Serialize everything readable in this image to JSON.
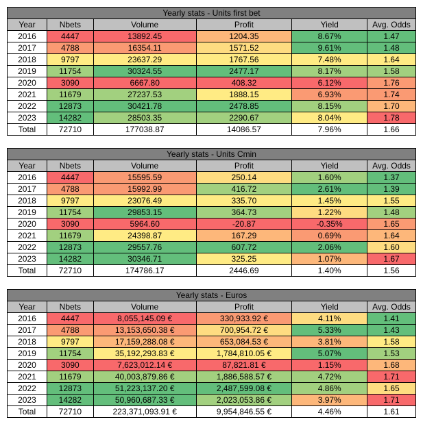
{
  "colors": {
    "green_d": "#63be7b",
    "green_m": "#a2d07f",
    "yellow": "#ffeb84",
    "orange_l": "#fedc81",
    "orange": "#fdb77a",
    "orange_d": "#fa9a73",
    "red": "#f8696b"
  },
  "columns": [
    "Year",
    "Nbets",
    "Volume",
    "Profit",
    "Yield",
    "Avg. Odds"
  ],
  "tables": [
    {
      "title": "Yearly stats - Units first bet",
      "rows": [
        {
          "year": "2016",
          "nbets": "4447",
          "nbets_c": "red",
          "vol": "13892.45",
          "vol_c": "red",
          "profit": "1204.35",
          "profit_c": "orange",
          "yield": "8.67%",
          "yield_c": "green_d",
          "odds": "1.47",
          "odds_c": "green_d"
        },
        {
          "year": "2017",
          "nbets": "4788",
          "nbets_c": "orange_d",
          "vol": "16354.11",
          "vol_c": "orange_d",
          "profit": "1571.52",
          "profit_c": "orange_l",
          "yield": "9.61%",
          "yield_c": "green_d",
          "odds": "1.48",
          "odds_c": "green_d"
        },
        {
          "year": "2018",
          "nbets": "9797",
          "nbets_c": "yellow",
          "vol": "23637.29",
          "vol_c": "yellow",
          "profit": "1767.56",
          "profit_c": "yellow",
          "yield": "7.48%",
          "yield_c": "yellow",
          "odds": "1.64",
          "odds_c": "yellow"
        },
        {
          "year": "2019",
          "nbets": "11754",
          "nbets_c": "green_m",
          "vol": "30324.55",
          "vol_c": "green_d",
          "profit": "2477.17",
          "profit_c": "green_d",
          "yield": "8.17%",
          "yield_c": "green_m",
          "odds": "1.58",
          "odds_c": "green_m"
        },
        {
          "year": "2020",
          "nbets": "3090",
          "nbets_c": "red",
          "vol": "6667.80",
          "vol_c": "red",
          "profit": "408.32",
          "profit_c": "red",
          "yield": "6.12%",
          "yield_c": "red",
          "odds": "1.76",
          "odds_c": "orange_d"
        },
        {
          "year": "2021",
          "nbets": "11679",
          "nbets_c": "green_m",
          "vol": "27237.53",
          "vol_c": "green_m",
          "profit": "1888.15",
          "profit_c": "yellow",
          "yield": "6.93%",
          "yield_c": "orange_d",
          "odds": "1.74",
          "odds_c": "orange_d"
        },
        {
          "year": "2022",
          "nbets": "12873",
          "nbets_c": "green_d",
          "vol": "30421.78",
          "vol_c": "green_d",
          "profit": "2478.85",
          "profit_c": "green_d",
          "yield": "8.15%",
          "yield_c": "green_m",
          "odds": "1.70",
          "odds_c": "orange"
        },
        {
          "year": "2023",
          "nbets": "14282",
          "nbets_c": "green_d",
          "vol": "28503.35",
          "vol_c": "green_m",
          "profit": "2290.67",
          "profit_c": "green_m",
          "yield": "8.04%",
          "yield_c": "yellow",
          "odds": "1.78",
          "odds_c": "red"
        }
      ],
      "total": {
        "year": "Total",
        "nbets": "72710",
        "vol": "177038.87",
        "profit": "14086.57",
        "yield": "7.96%",
        "odds": "1.66"
      }
    },
    {
      "title": "Yearly stats - Units Cmin",
      "rows": [
        {
          "year": "2016",
          "nbets": "4447",
          "nbets_c": "red",
          "vol": "15595.59",
          "vol_c": "orange_d",
          "profit": "250.14",
          "profit_c": "orange_l",
          "yield": "1.60%",
          "yield_c": "green_m",
          "odds": "1.37",
          "odds_c": "green_d"
        },
        {
          "year": "2017",
          "nbets": "4788",
          "nbets_c": "orange_d",
          "vol": "15992.99",
          "vol_c": "orange_d",
          "profit": "416.72",
          "profit_c": "green_m",
          "yield": "2.61%",
          "yield_c": "green_d",
          "odds": "1.39",
          "odds_c": "green_d"
        },
        {
          "year": "2018",
          "nbets": "9797",
          "nbets_c": "yellow",
          "vol": "23076.49",
          "vol_c": "yellow",
          "profit": "335.70",
          "profit_c": "yellow",
          "yield": "1.45%",
          "yield_c": "yellow",
          "odds": "1.55",
          "odds_c": "yellow"
        },
        {
          "year": "2019",
          "nbets": "11754",
          "nbets_c": "green_m",
          "vol": "29853.15",
          "vol_c": "green_d",
          "profit": "364.73",
          "profit_c": "green_m",
          "yield": "1.22%",
          "yield_c": "orange_l",
          "odds": "1.48",
          "odds_c": "green_m"
        },
        {
          "year": "2020",
          "nbets": "3090",
          "nbets_c": "red",
          "vol": "5964.60",
          "vol_c": "red",
          "profit": "-20.87",
          "profit_c": "red",
          "yield": "-0.35%",
          "yield_c": "red",
          "odds": "1.65",
          "odds_c": "orange_d"
        },
        {
          "year": "2021",
          "nbets": "11679",
          "nbets_c": "green_m",
          "vol": "24398.87",
          "vol_c": "yellow",
          "profit": "167.29",
          "profit_c": "orange",
          "yield": "0.69%",
          "yield_c": "orange_d",
          "odds": "1.64",
          "odds_c": "orange"
        },
        {
          "year": "2022",
          "nbets": "12873",
          "nbets_c": "green_d",
          "vol": "29557.76",
          "vol_c": "green_d",
          "profit": "607.72",
          "profit_c": "green_d",
          "yield": "2.06%",
          "yield_c": "green_d",
          "odds": "1.60",
          "odds_c": "orange_l"
        },
        {
          "year": "2023",
          "nbets": "14282",
          "nbets_c": "green_d",
          "vol": "30346.71",
          "vol_c": "green_d",
          "profit": "325.25",
          "profit_c": "yellow",
          "yield": "1.07%",
          "yield_c": "orange",
          "odds": "1.67",
          "odds_c": "red"
        }
      ],
      "total": {
        "year": "Total",
        "nbets": "72710",
        "vol": "174786.17",
        "profit": "2446.69",
        "yield": "1.40%",
        "odds": "1.56"
      }
    },
    {
      "title": "Yearly stats - Euros",
      "rows": [
        {
          "year": "2016",
          "nbets": "4447",
          "nbets_c": "red",
          "vol": "8,055,145.09 €",
          "vol_c": "red",
          "profit": "330,933.92 €",
          "profit_c": "orange_d",
          "yield": "4.11%",
          "yield_c": "orange_l",
          "odds": "1.41",
          "odds_c": "green_d"
        },
        {
          "year": "2017",
          "nbets": "4788",
          "nbets_c": "orange_d",
          "vol": "13,153,650.38 €",
          "vol_c": "orange_d",
          "profit": "700,954.72 €",
          "profit_c": "orange_l",
          "yield": "5.33%",
          "yield_c": "green_d",
          "odds": "1.43",
          "odds_c": "green_d"
        },
        {
          "year": "2018",
          "nbets": "9797",
          "nbets_c": "yellow",
          "vol": "17,159,288.08 €",
          "vol_c": "orange",
          "profit": "653,084.53 €",
          "profit_c": "orange",
          "yield": "3.81%",
          "yield_c": "orange",
          "odds": "1.58",
          "odds_c": "yellow"
        },
        {
          "year": "2019",
          "nbets": "11754",
          "nbets_c": "green_m",
          "vol": "35,192,293.83 €",
          "vol_c": "yellow",
          "profit": "1,784,810.05 €",
          "profit_c": "yellow",
          "yield": "5.07%",
          "yield_c": "green_d",
          "odds": "1.53",
          "odds_c": "green_m"
        },
        {
          "year": "2020",
          "nbets": "3090",
          "nbets_c": "red",
          "vol": "7,623,012.14 €",
          "vol_c": "red",
          "profit": "87,821.81 €",
          "profit_c": "red",
          "yield": "1.15%",
          "yield_c": "red",
          "odds": "1.68",
          "odds_c": "orange"
        },
        {
          "year": "2021",
          "nbets": "11679",
          "nbets_c": "green_m",
          "vol": "40,003,879.86 €",
          "vol_c": "green_m",
          "profit": "1,886,588.57 €",
          "profit_c": "green_m",
          "yield": "4.72%",
          "yield_c": "green_m",
          "odds": "1.71",
          "odds_c": "red"
        },
        {
          "year": "2022",
          "nbets": "12873",
          "nbets_c": "green_d",
          "vol": "51,223,137.20 €",
          "vol_c": "green_d",
          "profit": "2,487,599.08 €",
          "profit_c": "green_d",
          "yield": "4.86%",
          "yield_c": "green_m",
          "odds": "1.65",
          "odds_c": "orange_l"
        },
        {
          "year": "2023",
          "nbets": "14282",
          "nbets_c": "green_d",
          "vol": "50,960,687.33 €",
          "vol_c": "green_d",
          "profit": "2,023,053.86 €",
          "profit_c": "green_m",
          "yield": "3.97%",
          "yield_c": "orange",
          "odds": "1.71",
          "odds_c": "red"
        }
      ],
      "total": {
        "year": "Total",
        "nbets": "72710",
        "vol": "223,371,093.91 €",
        "profit": "9,954,846.55 €",
        "yield": "4.46%",
        "odds": "1.61"
      }
    }
  ]
}
